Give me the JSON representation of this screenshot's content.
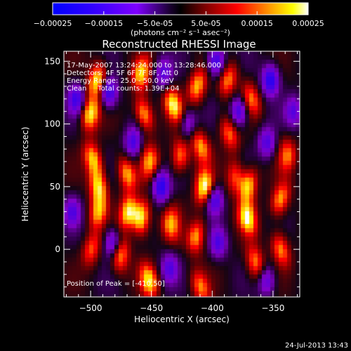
{
  "chart_data": {
    "type": "heatmap",
    "title": "Reconstructed RHESSI Image",
    "xlabel": "Heliocentric X (arcsec)",
    "ylabel": "Heliocentric Y (arcsec)",
    "xlim": [
      -522,
      -328
    ],
    "ylim": [
      -38,
      158
    ],
    "xticks": [
      -500,
      -450,
      -400,
      -350
    ],
    "yticks": [
      0,
      50,
      100,
      150
    ],
    "colorbar": {
      "range": [
        -0.00025,
        0.00025
      ],
      "tick_values": [
        -0.00025,
        -0.00015,
        -5e-05,
        5e-05,
        0.00015,
        0.00025
      ],
      "tick_labels": [
        "-0.00025",
        "-0.00015",
        "-5.0e-05",
        "5.0e-05",
        "0.00015",
        "0.00025"
      ],
      "unit_label": "(photons cm⁻² s⁻¹ asec⁻²)",
      "colors": [
        "#0000ff",
        "#7f00ff",
        "#000000",
        "#800000",
        "#ff0000",
        "#ffff00",
        "#ffffff"
      ]
    },
    "annotations": [
      "17-May-2007 13:24:24.000 to 13:28:46.000",
      "Detectors: 4F 5F 6F 7F 8F, Att 0",
      "Energy Range: 25.0 - 50.0 keV",
      "Clean     Total counts: 1.39E+04"
    ],
    "peak": {
      "label": "Position of Peak = [-410,50]",
      "x": -410,
      "y": 50
    },
    "stripes": [
      {
        "x": -497,
        "blobs": [
          {
            "y": 135,
            "v": 0.9
          },
          {
            "y": 108,
            "v": 0.9
          },
          {
            "y": 72,
            "v": 0.8
          },
          {
            "y": 50,
            "v": 0.85
          },
          {
            "y": 30,
            "v": 0.7
          },
          {
            "y": 0,
            "v": 0.55
          }
        ]
      },
      {
        "x": -472,
        "blobs": [
          {
            "y": 60,
            "v": 0.7
          },
          {
            "y": 30,
            "v": 0.9
          },
          {
            "y": -5,
            "v": 0.7
          }
        ]
      },
      {
        "x": -455,
        "blobs": [
          {
            "y": 140,
            "v": 0.8
          },
          {
            "y": 108,
            "v": 0.75
          },
          {
            "y": 70,
            "v": 0.7
          },
          {
            "y": 25,
            "v": 0.95
          },
          {
            "y": -25,
            "v": 0.85
          }
        ]
      },
      {
        "x": -430,
        "blobs": [
          {
            "y": 115,
            "v": 0.9
          },
          {
            "y": 75,
            "v": 0.65
          },
          {
            "y": 20,
            "v": 0.7
          }
        ]
      },
      {
        "x": -410,
        "blobs": [
          {
            "y": 130,
            "v": 0.75
          },
          {
            "y": 82,
            "v": 0.7
          },
          {
            "y": 50,
            "v": 1.0
          },
          {
            "y": 10,
            "v": 0.7
          },
          {
            "y": -30,
            "v": 0.6
          }
        ]
      },
      {
        "x": -385,
        "blobs": [
          {
            "y": 135,
            "v": 0.65
          },
          {
            "y": 92,
            "v": 0.6
          },
          {
            "y": 58,
            "v": 0.55
          }
        ]
      },
      {
        "x": -368,
        "blobs": [
          {
            "y": 120,
            "v": 0.6
          },
          {
            "y": 50,
            "v": 0.85
          },
          {
            "y": 25,
            "v": 0.95
          },
          {
            "y": -10,
            "v": 0.65
          }
        ]
      },
      {
        "x": -342,
        "blobs": [
          {
            "y": 75,
            "v": 0.6
          },
          {
            "y": 40,
            "v": 0.7
          },
          {
            "y": 0,
            "v": 0.65
          }
        ]
      }
    ],
    "troughs": [
      {
        "x": -512,
        "y": 120,
        "v": -0.6
      },
      {
        "x": -515,
        "y": 30,
        "v": -0.5
      },
      {
        "x": -485,
        "y": 125,
        "v": -0.7
      },
      {
        "x": -482,
        "y": 5,
        "v": -0.55
      },
      {
        "x": -465,
        "y": 85,
        "v": -0.6
      },
      {
        "x": -440,
        "y": 140,
        "v": -0.5
      },
      {
        "x": -442,
        "y": 50,
        "v": -0.75
      },
      {
        "x": -435,
        "y": -15,
        "v": -0.5
      },
      {
        "x": -420,
        "y": 100,
        "v": -0.45
      },
      {
        "x": -397,
        "y": 150,
        "v": -0.7
      },
      {
        "x": -398,
        "y": 40,
        "v": -0.6
      },
      {
        "x": -395,
        "y": 5,
        "v": -0.55
      },
      {
        "x": -378,
        "y": 110,
        "v": -0.65
      },
      {
        "x": -352,
        "y": 135,
        "v": -0.8
      },
      {
        "x": -355,
        "y": 85,
        "v": -0.55
      },
      {
        "x": -333,
        "y": 110,
        "v": -0.5
      },
      {
        "x": -355,
        "y": -25,
        "v": -0.5
      }
    ]
  },
  "footer": {
    "timestamp": "24-Jul-2013 13:43"
  }
}
